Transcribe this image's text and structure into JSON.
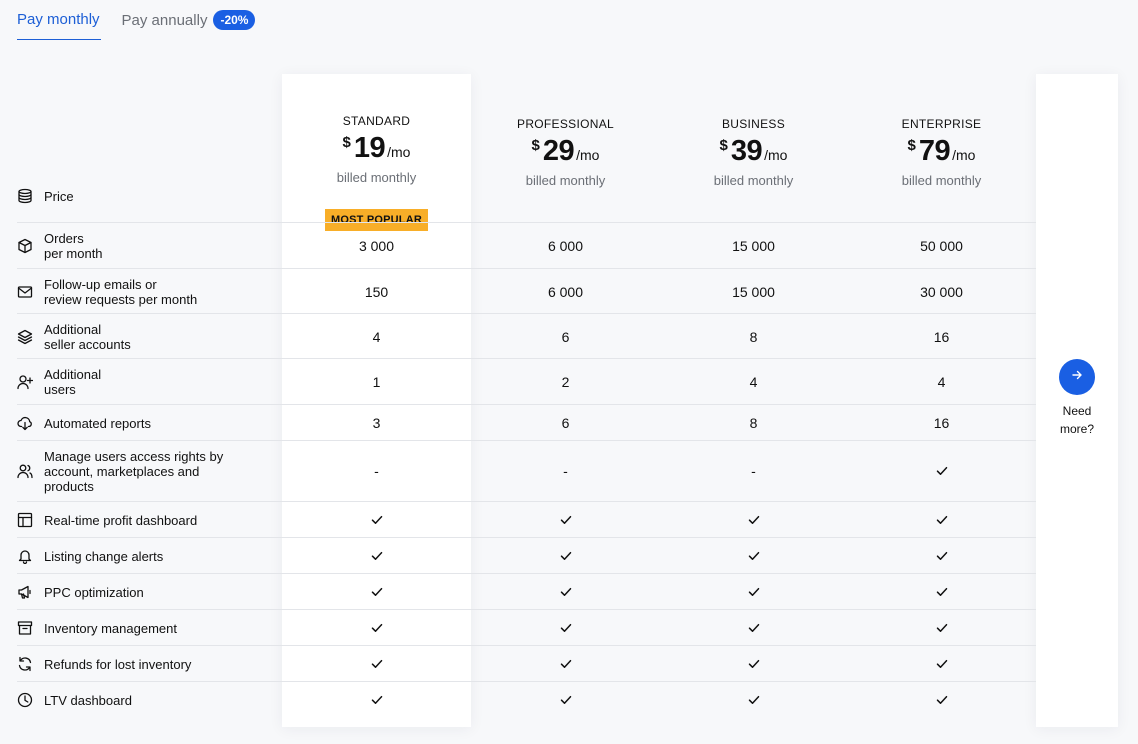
{
  "tabs": {
    "monthly": "Pay monthly",
    "annually": "Pay annually",
    "discount_badge": "-20%"
  },
  "plans": [
    {
      "name": "STANDARD",
      "currency": "$",
      "amount": "19",
      "per": "/mo",
      "billed": "billed monthly"
    },
    {
      "name": "PROFESSIONAL",
      "currency": "$",
      "amount": "29",
      "per": "/mo",
      "billed": "billed monthly"
    },
    {
      "name": "BUSINESS",
      "currency": "$",
      "amount": "39",
      "per": "/mo",
      "billed": "billed monthly"
    },
    {
      "name": "ENTERPRISE",
      "currency": "$",
      "amount": "79",
      "per": "/mo",
      "billed": "billed monthly"
    }
  ],
  "most_popular": "MOST POPULAR",
  "price_label": "Price",
  "features": [
    {
      "icon": "box-icon",
      "label": "Orders\nper month",
      "values": [
        "3 000",
        "6 000",
        "15 000",
        "50 000"
      ]
    },
    {
      "icon": "mail-icon",
      "label": "Follow-up emails or\nreview requests per month",
      "values": [
        "150",
        "6 000",
        "15 000",
        "30 000"
      ]
    },
    {
      "icon": "layers-icon",
      "label": "Additional\nseller accounts",
      "values": [
        "4",
        "6",
        "8",
        "16"
      ]
    },
    {
      "icon": "user-plus-icon",
      "label": "Additional\nusers",
      "values": [
        "1",
        "2",
        "4",
        "4"
      ]
    },
    {
      "icon": "download-cloud-icon",
      "label": "Automated reports",
      "values": [
        "3",
        "6",
        "8",
        "16"
      ]
    },
    {
      "icon": "users-icon",
      "label": "Manage users access rights by\naccount, marketplaces and\nproducts",
      "values": [
        "-",
        "-",
        "-",
        "check"
      ]
    },
    {
      "icon": "dashboard-icon",
      "label": "Real-time profit dashboard",
      "values": [
        "check",
        "check",
        "check",
        "check"
      ]
    },
    {
      "icon": "bell-icon",
      "label": "Listing change alerts",
      "values": [
        "check",
        "check",
        "check",
        "check"
      ]
    },
    {
      "icon": "megaphone-icon",
      "label": "PPC optimization",
      "values": [
        "check",
        "check",
        "check",
        "check"
      ]
    },
    {
      "icon": "archive-icon",
      "label": "Inventory management",
      "values": [
        "check",
        "check",
        "check",
        "check"
      ]
    },
    {
      "icon": "refresh-icon",
      "label": "Refunds for lost inventory",
      "values": [
        "check",
        "check",
        "check",
        "check"
      ]
    },
    {
      "icon": "clock-icon",
      "label": "LTV dashboard",
      "values": [
        "check",
        "check",
        "check",
        "check"
      ]
    }
  ],
  "need_more": "Need\nmore?",
  "colors": {
    "accent": "#1a5fe3",
    "popular": "#f8ae28"
  }
}
